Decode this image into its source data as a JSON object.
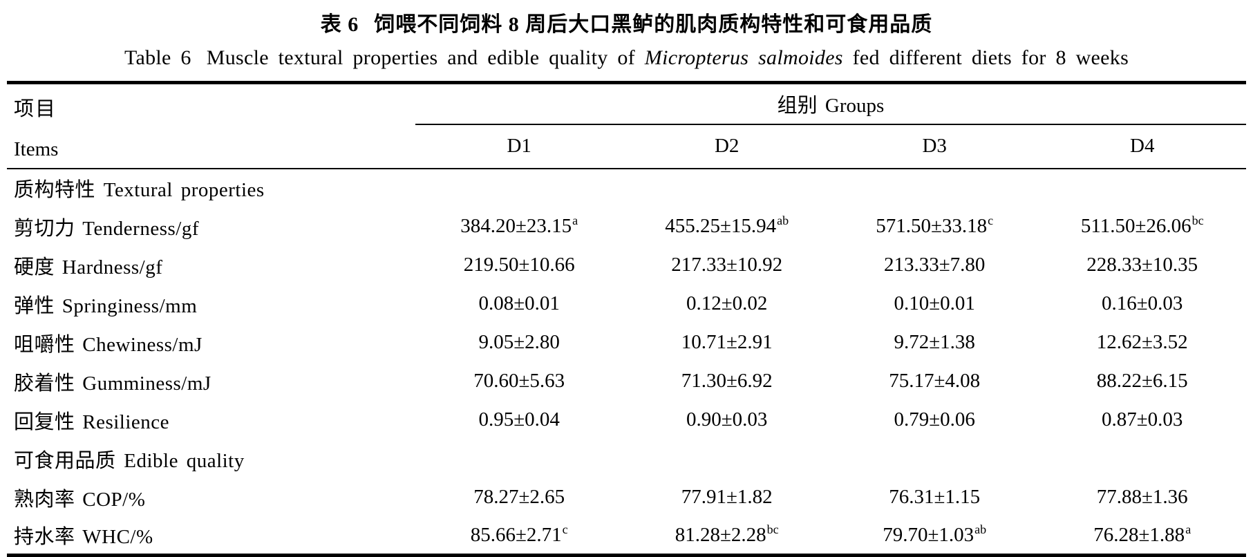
{
  "page": {
    "background": "#ffffff",
    "text_color": "#000000"
  },
  "title_zh": {
    "label": "表 6",
    "text": "饲喂不同饲料 8 周后大口黑鲈的肌肉质构特性和可食用品质"
  },
  "title_en": {
    "label": "Table 6",
    "before_species": "Muscle textural properties and edible quality of",
    "species": "Micropterus salmoides",
    "after_species": "fed different diets for 8 weeks"
  },
  "header": {
    "items_zh": "项目",
    "items_en": "Items",
    "groups_label": "组别 Groups",
    "columns": [
      "D1",
      "D2",
      "D3",
      "D4"
    ]
  },
  "sections": [
    {
      "label": "质构特性 Textural properties",
      "rows": [
        {
          "label": "剪切力 Tenderness/gf",
          "values": [
            {
              "v": "384.20±23.15",
              "sup": "a"
            },
            {
              "v": "455.25±15.94",
              "sup": "ab"
            },
            {
              "v": "571.50±33.18",
              "sup": "c"
            },
            {
              "v": "511.50±26.06",
              "sup": "bc"
            }
          ]
        },
        {
          "label": "硬度 Hardness/gf",
          "values": [
            {
              "v": "219.50±10.66",
              "sup": ""
            },
            {
              "v": "217.33±10.92",
              "sup": ""
            },
            {
              "v": "213.33±7.80",
              "sup": ""
            },
            {
              "v": "228.33±10.35",
              "sup": ""
            }
          ]
        },
        {
          "label": "弹性 Springiness/mm",
          "values": [
            {
              "v": "0.08±0.01",
              "sup": ""
            },
            {
              "v": "0.12±0.02",
              "sup": ""
            },
            {
              "v": "0.10±0.01",
              "sup": ""
            },
            {
              "v": "0.16±0.03",
              "sup": ""
            }
          ]
        },
        {
          "label": "咀嚼性 Chewiness/mJ",
          "values": [
            {
              "v": "9.05±2.80",
              "sup": ""
            },
            {
              "v": "10.71±2.91",
              "sup": ""
            },
            {
              "v": "9.72±1.38",
              "sup": ""
            },
            {
              "v": "12.62±3.52",
              "sup": ""
            }
          ]
        },
        {
          "label": "胶着性 Gumminess/mJ",
          "values": [
            {
              "v": "70.60±5.63",
              "sup": ""
            },
            {
              "v": "71.30±6.92",
              "sup": ""
            },
            {
              "v": "75.17±4.08",
              "sup": ""
            },
            {
              "v": "88.22±6.15",
              "sup": ""
            }
          ]
        },
        {
          "label": "回复性 Resilience",
          "values": [
            {
              "v": "0.95±0.04",
              "sup": ""
            },
            {
              "v": "0.90±0.03",
              "sup": ""
            },
            {
              "v": "0.79±0.06",
              "sup": ""
            },
            {
              "v": "0.87±0.03",
              "sup": ""
            }
          ]
        }
      ]
    },
    {
      "label": "可食用品质 Edible quality",
      "rows": [
        {
          "label": "熟肉率 COP/%",
          "values": [
            {
              "v": "78.27±2.65",
              "sup": ""
            },
            {
              "v": "77.91±1.82",
              "sup": ""
            },
            {
              "v": "76.31±1.15",
              "sup": ""
            },
            {
              "v": "77.88±1.36",
              "sup": ""
            }
          ]
        },
        {
          "label": "持水率 WHC/%",
          "values": [
            {
              "v": "85.66±2.71",
              "sup": "c"
            },
            {
              "v": "81.28±2.28",
              "sup": "bc"
            },
            {
              "v": "79.70±1.03",
              "sup": "ab"
            },
            {
              "v": "76.28±1.88",
              "sup": "a"
            }
          ]
        }
      ]
    }
  ]
}
